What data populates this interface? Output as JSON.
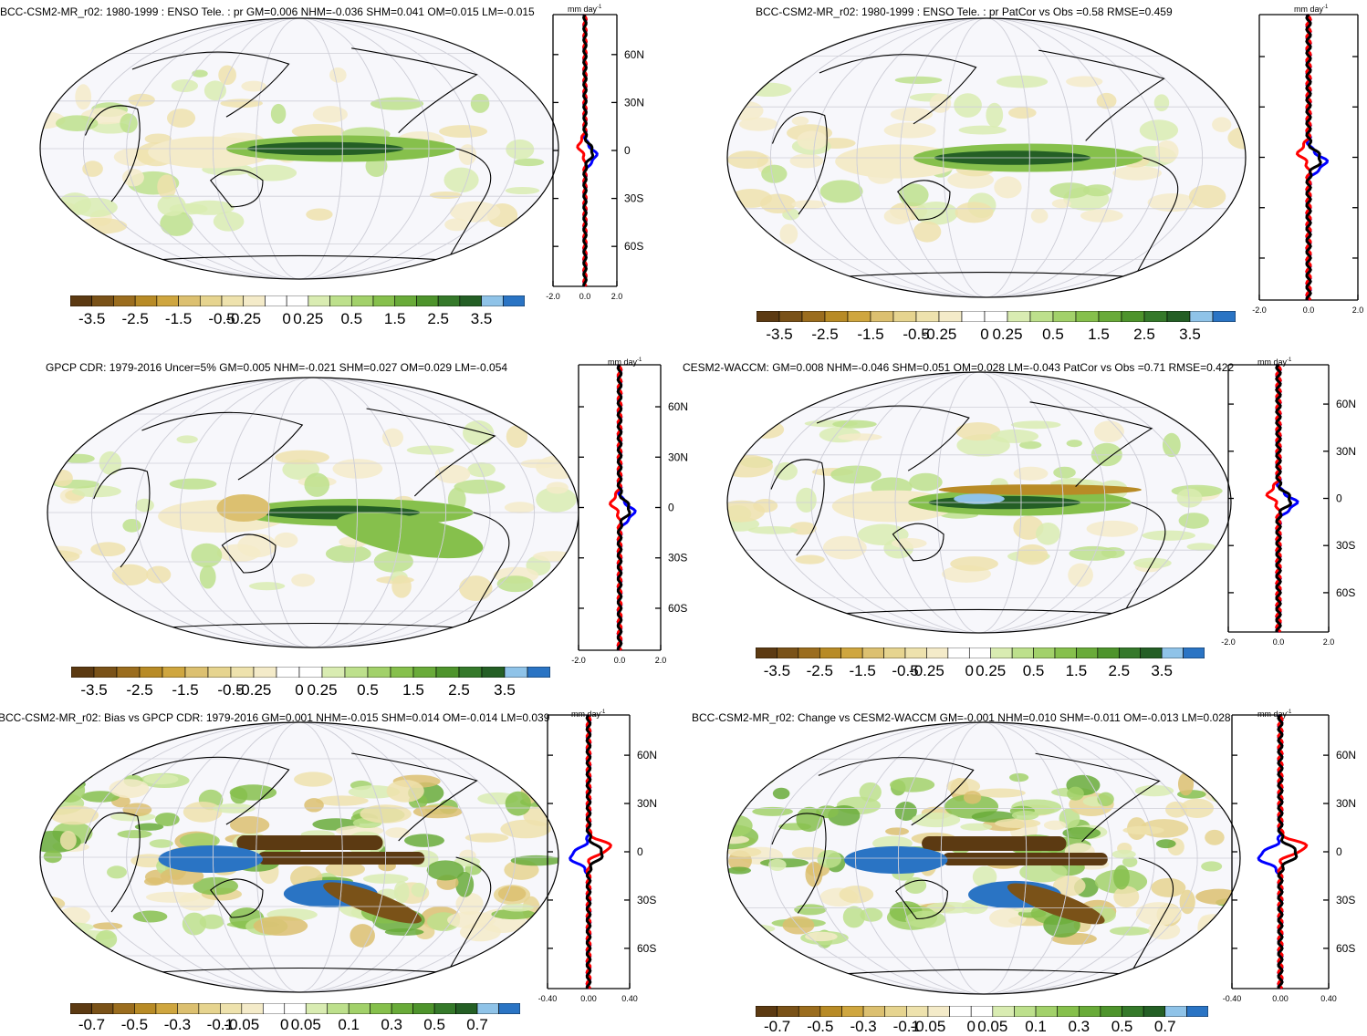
{
  "palettes": {
    "precip": [
      "#5c3a12",
      "#7a5218",
      "#9b6d1e",
      "#b88b26",
      "#cfa63f",
      "#dcc070",
      "#e6d48f",
      "#eee2ad",
      "#f4ebc9",
      "#ffffff",
      "#ffffff",
      "#d9ecb2",
      "#bde08c",
      "#a2d16a",
      "#86c04c",
      "#69ab39",
      "#4e942c",
      "#35792a",
      "#245f25",
      "#8fc3e8",
      "#2a74c4"
    ],
    "profile_colors": {
      "model": "#000000",
      "obs": "#ff0000",
      "alt": "#0000ff"
    },
    "map_bg": "#f7f7fb",
    "grid": "#cfcfd8"
  },
  "panels": [
    {
      "id": "p1",
      "title": "BCC-CSM2-MR_r02: 1980-1999 : ENSO Tele. : pr GM=0.006 NHM=-0.036 SHM=0.041 OM=0.015 LM=-0.015",
      "colorbar_labels": [
        "-3.5",
        "-2.5",
        "-1.5",
        "-0.5",
        "-0.25",
        "0",
        "0.25",
        "0.5",
        "1.5",
        "2.5",
        "3.5"
      ],
      "profile_unit": "mm day",
      "profile_unit_sup": "-1",
      "profile_xticks": [
        "-2.0",
        "0.0",
        "2.0"
      ],
      "profile_yticks": [
        "60N",
        "30N",
        "0",
        "30S",
        "60S"
      ],
      "show_ylabels": true
    },
    {
      "id": "p2",
      "title": "BCC-CSM2-MR_r02: 1980-1999 : ENSO Tele. : pr PatCor vs Obs =0.58 RMSE=0.459",
      "colorbar_labels": [
        "-3.5",
        "-2.5",
        "-1.5",
        "-0.5",
        "-0.25",
        "0",
        "0.25",
        "0.5",
        "1.5",
        "2.5",
        "3.5"
      ],
      "profile_unit": "mm day",
      "profile_unit_sup": "-1",
      "profile_xticks": [
        "-2.0",
        "0.0",
        "2.0"
      ],
      "profile_yticks": [],
      "show_ylabels": false
    },
    {
      "id": "p3",
      "title": "GPCP CDR: 1979-2016 Uncer=5% GM=0.005 NHM=-0.021 SHM=0.027 OM=0.029 LM=-0.054",
      "colorbar_labels": [
        "-3.5",
        "-2.5",
        "-1.5",
        "-0.5",
        "-0.25",
        "0",
        "0.25",
        "0.5",
        "1.5",
        "2.5",
        "3.5"
      ],
      "profile_unit": "mm day",
      "profile_unit_sup": "-1",
      "profile_xticks": [
        "-2.0",
        "0.0",
        "2.0"
      ],
      "profile_yticks": [
        "60N",
        "30N",
        "0",
        "30S",
        "60S"
      ],
      "show_ylabels": true
    },
    {
      "id": "p4",
      "title": "CESM2-WACCM: GM=0.008 NHM=-0.046 SHM=0.051 OM=0.028 LM=-0.043 PatCor vs Obs =0.71 RMSE=0.422",
      "colorbar_labels": [
        "-3.5",
        "-2.5",
        "-1.5",
        "-0.5",
        "-0.25",
        "0",
        "0.25",
        "0.5",
        "1.5",
        "2.5",
        "3.5"
      ],
      "profile_unit": "mm day",
      "profile_unit_sup": "-1",
      "profile_xticks": [
        "-2.0",
        "0.0",
        "2.0"
      ],
      "profile_yticks": [
        "60N",
        "30N",
        "0",
        "30S",
        "60S"
      ],
      "show_ylabels": true
    },
    {
      "id": "p5",
      "title": "BCC-CSM2-MR_r02: Bias vs GPCP CDR: 1979-2016 GM=0.001 NHM=-0.015 SHM=0.014 OM=-0.014 LM=0.039",
      "colorbar_labels": [
        "-0.7",
        "-0.5",
        "-0.3",
        "-0.1",
        "-0.05",
        "0",
        "0.05",
        "0.1",
        "0.3",
        "0.5",
        "0.7"
      ],
      "profile_unit": "mm day",
      "profile_unit_sup": "-1",
      "profile_xticks": [
        "-0.40",
        "0.00",
        "0.40"
      ],
      "profile_yticks": [
        "60N",
        "30N",
        "0",
        "30S",
        "60S"
      ],
      "show_ylabels": true
    },
    {
      "id": "p6",
      "title": "BCC-CSM2-MR_r02: Change vs CESM2-WACCM GM=-0.001 NHM=0.010 SHM=-0.011 OM=-0.013 LM=0.028",
      "colorbar_labels": [
        "-0.7",
        "-0.5",
        "-0.3",
        "-0.1",
        "-0.05",
        "0",
        "0.05",
        "0.1",
        "0.3",
        "0.5",
        "0.7"
      ],
      "profile_unit": "mm day",
      "profile_unit_sup": "-1",
      "profile_xticks": [
        "-0.40",
        "0.00",
        "0.40"
      ],
      "profile_yticks": [
        "60N",
        "30N",
        "0",
        "30S",
        "60S"
      ],
      "show_ylabels": true
    }
  ],
  "chart_data": [
    {
      "type": "heatmap",
      "title": "BCC-CSM2-MR_r02: 1980-1999 : ENSO Tele. : pr GM=0.006 NHM=-0.036 SHM=0.041 OM=0.015 LM=-0.015",
      "colorbar": [
        -3.5,
        -2.5,
        -1.5,
        -0.5,
        -0.25,
        0,
        0.25,
        0.5,
        1.5,
        2.5,
        3.5
      ],
      "zonal_mean_profile": {
        "x_range": [
          -2.0,
          2.0
        ],
        "lat_ticks": [
          "60N",
          "30N",
          "0",
          "30S",
          "60S"
        ],
        "peak_near_equator": 0.8
      }
    },
    {
      "type": "heatmap",
      "title": "BCC-CSM2-MR_r02: 1980-1999 : ENSO Tele. : pr PatCor vs Obs =0.58 RMSE=0.459",
      "colorbar": [
        -3.5,
        -2.5,
        -1.5,
        -0.5,
        -0.25,
        0,
        0.25,
        0.5,
        1.5,
        2.5,
        3.5
      ],
      "zonal_mean_profile": {
        "x_range": [
          -2.0,
          2.0
        ],
        "peak_near_equator": 0.9
      }
    },
    {
      "type": "heatmap",
      "title": "GPCP CDR: 1979-2016 Uncer=5% GM=0.005 NHM=-0.021 SHM=0.027 OM=0.029 LM=-0.054",
      "colorbar": [
        -3.5,
        -2.5,
        -1.5,
        -0.5,
        -0.25,
        0,
        0.25,
        0.5,
        1.5,
        2.5,
        3.5
      ],
      "zonal_mean_profile": {
        "x_range": [
          -2.0,
          2.0
        ],
        "lat_ticks": [
          "60N",
          "30N",
          "0",
          "30S",
          "60S"
        ],
        "peak_near_equator": 0.6
      }
    },
    {
      "type": "heatmap",
      "title": "CESM2-WACCM: GM=0.008 NHM=-0.046 SHM=0.051 OM=0.028 LM=-0.043 PatCor vs Obs =0.71 RMSE=0.422",
      "colorbar": [
        -3.5,
        -2.5,
        -1.5,
        -0.5,
        -0.25,
        0,
        0.25,
        0.5,
        1.5,
        2.5,
        3.5
      ],
      "zonal_mean_profile": {
        "x_range": [
          -2.0,
          2.0
        ],
        "lat_ticks": [
          "60N",
          "30N",
          "0",
          "30S",
          "60S"
        ],
        "peak_near_equator": 1.2
      }
    },
    {
      "type": "heatmap",
      "title": "BCC-CSM2-MR_r02: Bias vs GPCP CDR: 1979-2016 GM=0.001 NHM=-0.015 SHM=0.014 OM=-0.014 LM=0.039",
      "colorbar": [
        -0.7,
        -0.5,
        -0.3,
        -0.1,
        -0.05,
        0,
        0.05,
        0.1,
        0.3,
        0.5,
        0.7
      ],
      "zonal_mean_profile": {
        "x_range": [
          -0.4,
          0.4
        ],
        "lat_ticks": [
          "60N",
          "30N",
          "0",
          "30S",
          "60S"
        ]
      }
    },
    {
      "type": "heatmap",
      "title": "BCC-CSM2-MR_r02: Change vs CESM2-WACCM GM=-0.001 NHM=0.010 SHM=-0.011 OM=-0.013 LM=0.028",
      "colorbar": [
        -0.7,
        -0.5,
        -0.3,
        -0.1,
        -0.05,
        0,
        0.05,
        0.1,
        0.3,
        0.5,
        0.7
      ],
      "zonal_mean_profile": {
        "x_range": [
          -0.4,
          0.4
        ],
        "lat_ticks": [
          "60N",
          "30N",
          "0",
          "30S",
          "60S"
        ]
      }
    }
  ]
}
